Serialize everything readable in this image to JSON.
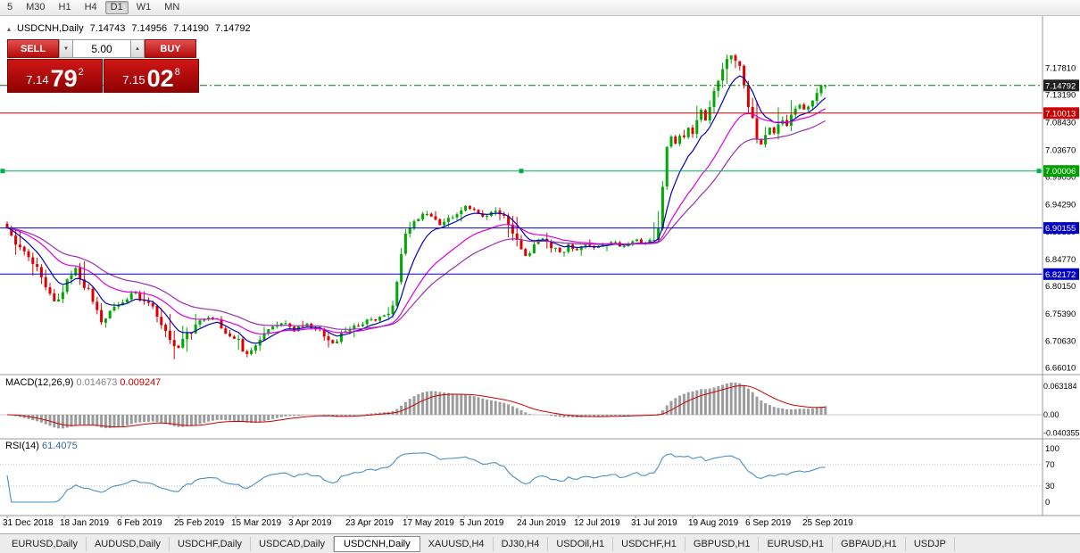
{
  "icons": {
    "triangle_up": "▲",
    "triangle_down": "▼",
    "window_marker": "▴"
  },
  "toolbar": {
    "active": "D1",
    "timeframes": [
      {
        "label": "5"
      },
      {
        "label": "M30"
      },
      {
        "label": "H1"
      },
      {
        "label": "H4"
      },
      {
        "label": "D1"
      },
      {
        "label": "W1"
      },
      {
        "label": "MN"
      }
    ]
  },
  "chart_header": {
    "symbol": "USDCNH,Daily",
    "open": "7.14743",
    "high": "7.14956",
    "low": "7.14190",
    "close": "7.14792"
  },
  "one_click": {
    "sell_label": "SELL",
    "buy_label": "BUY",
    "volume": "5.00",
    "sell_price_main": "7.14",
    "sell_price_big": "79",
    "sell_price_sup": "2",
    "buy_price_main": "7.15",
    "buy_price_big": "02",
    "buy_price_sup": "8"
  },
  "chart_data": {
    "type": "candlestick",
    "symbol": "USDCNH",
    "period": "Daily",
    "up_color": "#00a800",
    "down_color": "#dd0000",
    "ohlc_current": {
      "open": 7.14743,
      "high": 7.14956,
      "low": 7.1419,
      "close": 7.14792
    },
    "ylim": [
      6.648,
      7.2525
    ],
    "bar_count": 192,
    "x_labels": [
      "31 Dec 2018",
      "18 Jan 2019",
      "6 Feb 2019",
      "25 Feb 2019",
      "15 Mar 2019",
      "3 Apr 2019",
      "23 Apr 2019",
      "17 May 2019",
      "5 Jun 2019",
      "24 Jun 2019",
      "12 Jul 2019",
      "31 Jul 2019",
      "19 Aug 2019",
      "6 Sep 2019",
      "25 Sep 2019"
    ],
    "y_ticks": [
      7.1781,
      7.1319,
      7.0843,
      7.0367,
      6.9905,
      6.9429,
      6.8953,
      6.8477,
      6.8015,
      6.7539,
      6.7063,
      6.6601
    ],
    "price_path_anchors": [
      [
        0,
        6.902
      ],
      [
        3,
        6.868
      ],
      [
        6,
        6.845
      ],
      [
        9,
        6.795
      ],
      [
        11,
        6.775
      ],
      [
        14,
        6.812
      ],
      [
        16,
        6.83
      ],
      [
        18,
        6.808
      ],
      [
        20,
        6.77
      ],
      [
        22,
        6.742
      ],
      [
        24,
        6.758
      ],
      [
        27,
        6.778
      ],
      [
        30,
        6.79
      ],
      [
        33,
        6.768
      ],
      [
        36,
        6.742
      ],
      [
        38,
        6.712
      ],
      [
        40,
        6.695
      ],
      [
        42,
        6.715
      ],
      [
        45,
        6.738
      ],
      [
        48,
        6.748
      ],
      [
        51,
        6.725
      ],
      [
        54,
        6.705
      ],
      [
        56,
        6.682
      ],
      [
        58,
        6.7
      ],
      [
        61,
        6.728
      ],
      [
        64,
        6.738
      ],
      [
        67,
        6.725
      ],
      [
        70,
        6.735
      ],
      [
        73,
        6.722
      ],
      [
        76,
        6.702
      ],
      [
        79,
        6.722
      ],
      [
        82,
        6.736
      ],
      [
        85,
        6.742
      ],
      [
        88,
        6.748
      ],
      [
        90,
        6.772
      ],
      [
        91,
        6.812
      ],
      [
        92,
        6.852
      ],
      [
        93,
        6.882
      ],
      [
        95,
        6.912
      ],
      [
        97,
        6.928
      ],
      [
        99,
        6.918
      ],
      [
        101,
        6.908
      ],
      [
        103,
        6.918
      ],
      [
        105,
        6.928
      ],
      [
        107,
        6.938
      ],
      [
        109,
        6.93
      ],
      [
        111,
        6.922
      ],
      [
        113,
        6.932
      ],
      [
        115,
        6.928
      ],
      [
        117,
        6.905
      ],
      [
        119,
        6.872
      ],
      [
        121,
        6.852
      ],
      [
        123,
        6.872
      ],
      [
        125,
        6.882
      ],
      [
        127,
        6.87
      ],
      [
        129,
        6.858
      ],
      [
        131,
        6.872
      ],
      [
        133,
        6.864
      ],
      [
        135,
        6.872
      ],
      [
        137,
        6.868
      ],
      [
        139,
        6.872
      ],
      [
        141,
        6.878
      ],
      [
        143,
        6.87
      ],
      [
        145,
        6.876
      ],
      [
        147,
        6.88
      ],
      [
        149,
        6.876
      ],
      [
        151,
        6.885
      ],
      [
        152,
        6.908
      ],
      [
        153,
        6.975
      ],
      [
        154,
        7.045
      ],
      [
        155,
        7.06
      ],
      [
        156,
        7.048
      ],
      [
        157,
        7.062
      ],
      [
        158,
        7.055
      ],
      [
        159,
        7.072
      ],
      [
        160,
        7.06
      ],
      [
        161,
        7.085
      ],
      [
        162,
        7.105
      ],
      [
        163,
        7.09
      ],
      [
        164,
        7.11
      ],
      [
        165,
        7.13
      ],
      [
        166,
        7.15
      ],
      [
        167,
        7.172
      ],
      [
        168,
        7.192
      ],
      [
        169,
        7.202
      ],
      [
        170,
        7.185
      ],
      [
        171,
        7.172
      ],
      [
        172,
        7.145
      ],
      [
        173,
        7.115
      ],
      [
        174,
        7.088
      ],
      [
        175,
        7.065
      ],
      [
        176,
        7.05
      ],
      [
        177,
        7.058
      ],
      [
        178,
        7.072
      ],
      [
        179,
        7.062
      ],
      [
        180,
        7.078
      ],
      [
        181,
        7.09
      ],
      [
        182,
        7.082
      ],
      [
        183,
        7.096
      ],
      [
        184,
        7.104
      ],
      [
        185,
        7.112
      ],
      [
        186,
        7.106
      ],
      [
        187,
        7.118
      ],
      [
        188,
        7.126
      ],
      [
        189,
        7.134
      ],
      [
        190,
        7.142
      ],
      [
        191,
        7.14792
      ]
    ],
    "horizontal_lines": [
      {
        "id": "bid-line",
        "price": 7.14792,
        "label": "7.14792",
        "color": "#067006",
        "style": "dashdot",
        "tag_bg": "#1f1f1f",
        "handles": false
      },
      {
        "id": "level-710",
        "price": 7.10013,
        "label": "7.10013",
        "color": "#cc0000",
        "style": "solid",
        "tag_bg": "#cc0000",
        "handles": false
      },
      {
        "id": "level-700",
        "price": 7.00006,
        "label": "7.00006",
        "color": "#00b050",
        "style": "solid",
        "tag_bg": "#00a000",
        "handles": true
      },
      {
        "id": "level-690",
        "price": 6.90155,
        "label": "6.90155",
        "color": "#0000cc",
        "style": "solid",
        "tag_bg": "#0000cc",
        "handles": false
      },
      {
        "id": "level-682",
        "price": 6.82172,
        "label": "6.82172",
        "color": "#0000cc",
        "style": "solid",
        "tag_bg": "#0000cc",
        "handles": false
      }
    ],
    "moving_averages": [
      {
        "period": 8,
        "color": "#0000b8"
      },
      {
        "period": 21,
        "color": "#e000e0"
      },
      {
        "period": 34,
        "color": "#9b30b0"
      }
    ],
    "indicators": {
      "macd": {
        "label": "MACD(12,26,9)",
        "params": [
          12,
          26,
          9
        ],
        "value_main": "0.014673",
        "value_signal": "0.009247",
        "axis_max": "0.063184",
        "axis_zero": "0.00",
        "axis_min": "-0.040355",
        "hist_color": "#9c9c9c",
        "signal_color": "#cc0000"
      },
      "rsi": {
        "label": "RSI(14)",
        "period": 14,
        "value": "61.4075",
        "axis": [
          "100",
          "70",
          "30",
          "0"
        ],
        "levels": [
          30,
          70
        ],
        "color": "#4a90c4"
      }
    }
  },
  "tabs": {
    "active_index": 4,
    "items": [
      "EURUSD,Daily",
      "AUDUSD,Daily",
      "USDCHF,Daily",
      "USDCAD,Daily",
      "USDCNH,Daily",
      "XAUUSD,H4",
      "DJ30,H4",
      "USDOil,H1",
      "USDCHF,H1",
      "GBPUSD,H1",
      "EURUSD,H1",
      "GBPAUD,H1",
      "USDJP"
    ]
  }
}
